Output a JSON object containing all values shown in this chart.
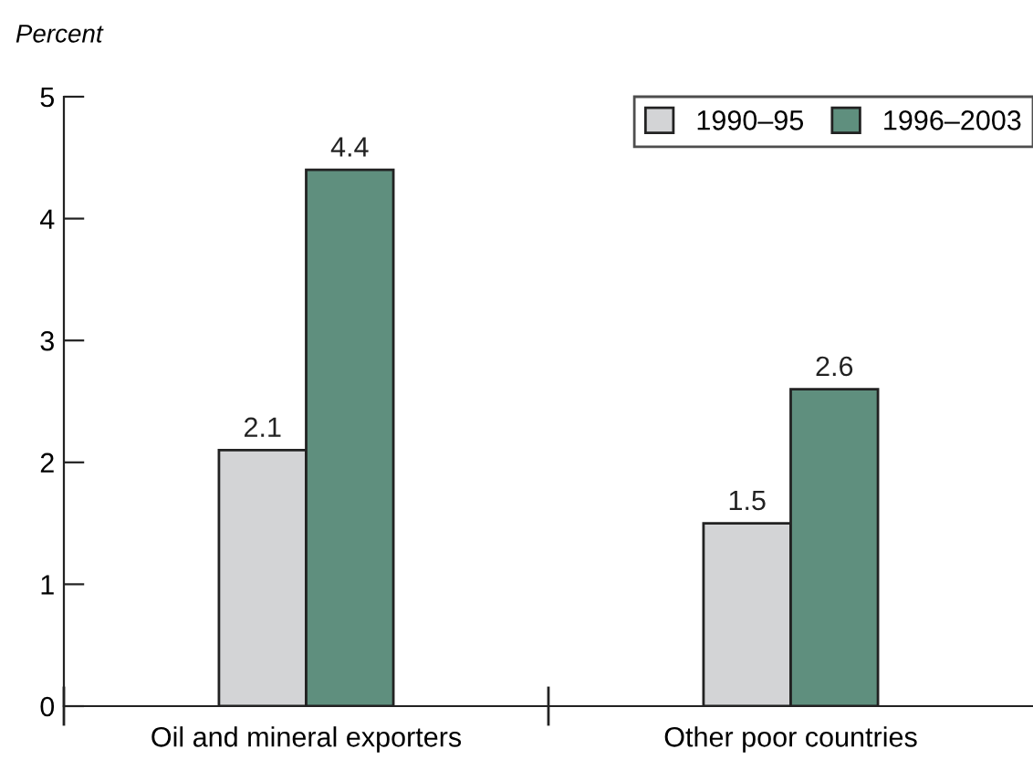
{
  "chart_data": {
    "type": "bar",
    "ylabel": "Percent",
    "categories": [
      "Oil and mineral exporters",
      "Other poor countries"
    ],
    "series": [
      {
        "name": "1990–95",
        "color": "#d3d4d6",
        "values": [
          2.1,
          1.5
        ]
      },
      {
        "name": "1996–2003",
        "color": "#5f8f7e",
        "values": [
          4.4,
          2.6
        ]
      }
    ],
    "ylim": [
      0,
      5
    ],
    "yticks": [
      0,
      1,
      2,
      3,
      4,
      5
    ],
    "data_labels": true,
    "grid": false,
    "legend": "top right"
  }
}
